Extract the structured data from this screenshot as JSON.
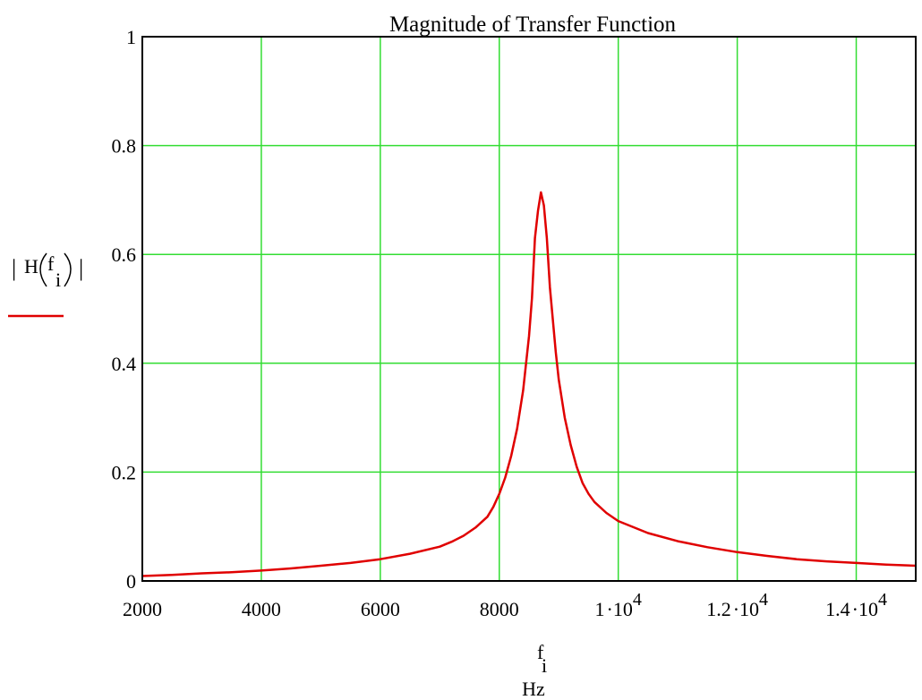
{
  "chart_data": {
    "type": "line",
    "title": "Magnitude of Transfer Function",
    "xlabel": {
      "main": "f",
      "sub": "i",
      "unit": "Hz"
    },
    "ylabel": {
      "open": "|",
      "fn": "H",
      "arg": "f",
      "sub": "i",
      "close": "|"
    },
    "xlim": [
      2000,
      15000
    ],
    "ylim": [
      0,
      1
    ],
    "grid": true,
    "grid_color": "#33dd33",
    "series_color": "#e00000",
    "x_ticks": [
      {
        "value": 2000,
        "parts": [
          "2000"
        ]
      },
      {
        "value": 4000,
        "parts": [
          "4000"
        ]
      },
      {
        "value": 6000,
        "parts": [
          "6000"
        ]
      },
      {
        "value": 8000,
        "parts": [
          "8000"
        ]
      },
      {
        "value": 10000,
        "parts": [
          "1",
          "·",
          "10",
          "4"
        ]
      },
      {
        "value": 12000,
        "parts": [
          "1.2",
          "·",
          "10",
          "4"
        ]
      },
      {
        "value": 14000,
        "parts": [
          "1.4",
          "·",
          "10",
          "4"
        ]
      }
    ],
    "y_ticks": [
      {
        "value": 0,
        "label": "0"
      },
      {
        "value": 0.2,
        "label": "0.2"
      },
      {
        "value": 0.4,
        "label": "0.4"
      },
      {
        "value": 0.6,
        "label": "0.6"
      },
      {
        "value": 0.8,
        "label": "0.8"
      },
      {
        "value": 1,
        "label": "1"
      }
    ],
    "series": [
      {
        "x": [
          2000,
          2500,
          3000,
          3500,
          4000,
          4500,
          5000,
          5500,
          6000,
          6500,
          7000,
          7200,
          7400,
          7600,
          7800,
          7900,
          8000,
          8100,
          8200,
          8300,
          8400,
          8500,
          8550,
          8600,
          8650,
          8700,
          8750,
          8800,
          8850,
          8900,
          8950,
          9000,
          9100,
          9200,
          9300,
          9400,
          9500,
          9600,
          9800,
          10000,
          10500,
          11000,
          11500,
          12000,
          12500,
          13000,
          13500,
          14000,
          14500,
          15000
        ],
        "y": [
          0.009,
          0.011,
          0.014,
          0.016,
          0.019,
          0.023,
          0.028,
          0.033,
          0.04,
          0.05,
          0.063,
          0.072,
          0.083,
          0.098,
          0.118,
          0.136,
          0.16,
          0.19,
          0.23,
          0.28,
          0.35,
          0.45,
          0.52,
          0.63,
          0.68,
          0.714,
          0.69,
          0.63,
          0.54,
          0.48,
          0.42,
          0.37,
          0.3,
          0.25,
          0.21,
          0.18,
          0.16,
          0.145,
          0.125,
          0.11,
          0.088,
          0.073,
          0.062,
          0.053,
          0.046,
          0.04,
          0.036,
          0.033,
          0.03,
          0.028
        ]
      }
    ]
  }
}
